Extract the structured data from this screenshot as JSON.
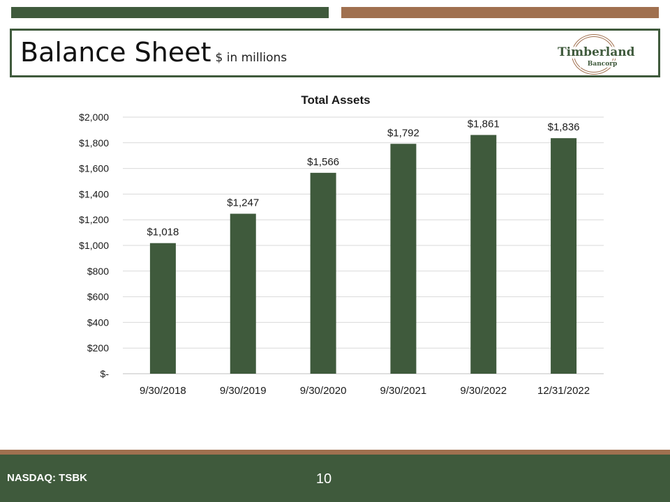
{
  "header": {
    "title": "Balance Sheet",
    "subtitle": "$ in millions"
  },
  "logo": {
    "name": "Timberland",
    "sub": "Bancorp"
  },
  "footer": {
    "ticker": "NASDAQ: TSBK",
    "page_number": "10"
  },
  "colors": {
    "bar": "#3f5a3c",
    "accent_brown": "#a0704f",
    "gridline": "#d9d9d9"
  },
  "chart_data": {
    "type": "bar",
    "title": "Total Assets",
    "xlabel": "",
    "ylabel": "",
    "categories": [
      "9/30/2018",
      "9/30/2019",
      "9/30/2020",
      "9/30/2021",
      "9/30/2022",
      "12/31/2022"
    ],
    "values": [
      1018,
      1247,
      1566,
      1792,
      1861,
      1836
    ],
    "data_labels": [
      "$1,018",
      "$1,247",
      "$1,566",
      "$1,792",
      "$1,861",
      "$1,836"
    ],
    "ylim": [
      0,
      2000
    ],
    "y_ticks": [
      0,
      200,
      400,
      600,
      800,
      1000,
      1200,
      1400,
      1600,
      1800,
      2000
    ],
    "y_tick_labels": [
      "$-",
      "$200",
      "$400",
      "$600",
      "$800",
      "$1,000",
      "$1,200",
      "$1,400",
      "$1,600",
      "$1,800",
      "$2,000"
    ],
    "grid": true,
    "legend": "none"
  }
}
